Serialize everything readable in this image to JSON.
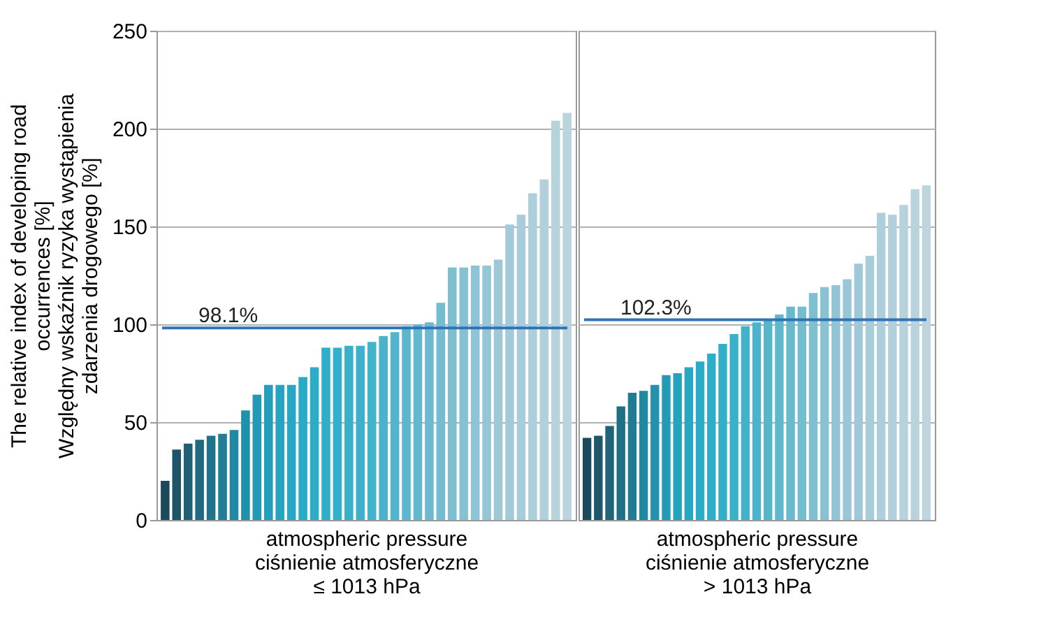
{
  "chart_data": [
    {
      "type": "bar",
      "xlabel": "atmospheric pressure\nciśnienie atmosferyczne\n≤ 1013 hPa",
      "ylabel": "The relative index of developing road\noccurrences [%]\nWzględny wskaźnik ryzyka wystąpienia\nzdarzenia drogowego [%]",
      "categories": [
        null,
        null,
        null,
        null,
        null,
        null,
        null,
        null,
        null,
        null,
        null,
        null,
        null,
        null,
        null,
        null,
        null,
        null,
        null,
        null,
        null,
        null,
        null,
        null,
        null,
        null,
        null,
        null,
        null,
        null,
        null,
        null,
        null,
        null,
        null,
        null
      ],
      "values": [
        20,
        36,
        39,
        41,
        43,
        44,
        46,
        56,
        64,
        69,
        69,
        69,
        73,
        78,
        88,
        88,
        89,
        89,
        91,
        94,
        96,
        99,
        100,
        101,
        111,
        129,
        129,
        130,
        130,
        133,
        151,
        156,
        167,
        174,
        204,
        208
      ],
      "colors": [
        "#1b4a5c",
        "#1d5568",
        "#1e6075",
        "#1f6a81",
        "#1f748c",
        "#207e97",
        "#2088a2",
        "#2192ad",
        "#2299b5",
        "#239fbb",
        "#24a4c0",
        "#26a8c4",
        "#28abc6",
        "#2badc8",
        "#2eaec9",
        "#32afca",
        "#37b0ca",
        "#3db1cb",
        "#43b2cb",
        "#4ab3cc",
        "#52b5cc",
        "#5ab7cd",
        "#62b8cd",
        "#6bbacf",
        "#74bcd0",
        "#7dbfd1",
        "#86c1d3",
        "#8ec4d5",
        "#95c6d6",
        "#9cc8d8",
        "#a2cad9",
        "#a8ccda",
        "#adcedb",
        "#b2d0dc",
        "#b6d2dd",
        "#bad4de"
      ],
      "ylim": [
        0,
        250
      ],
      "yticks": [
        0,
        50,
        100,
        150,
        200,
        250
      ],
      "grid": "y",
      "tick_labels": "y",
      "ref_lines": [
        {
          "axis": "y",
          "value": 98.1,
          "label": "98.1%",
          "color": "#2e75b6"
        }
      ]
    },
    {
      "type": "bar",
      "xlabel": "atmospheric pressure\nciśnienie atmosferyczne\n> 1013 hPa",
      "categories": [
        null,
        null,
        null,
        null,
        null,
        null,
        null,
        null,
        null,
        null,
        null,
        null,
        null,
        null,
        null,
        null,
        null,
        null,
        null,
        null,
        null,
        null,
        null,
        null,
        null,
        null,
        null,
        null,
        null,
        null,
        null
      ],
      "values": [
        42,
        43,
        48,
        58,
        65,
        66,
        69,
        74,
        75,
        78,
        81,
        85,
        90,
        95,
        99,
        101,
        102,
        105,
        109,
        109,
        116,
        119,
        120,
        123,
        131,
        135,
        157,
        156,
        161,
        169,
        171
      ],
      "colors": [
        "#1b4a5c",
        "#1d5769",
        "#1f6478",
        "#1f7086",
        "#207c94",
        "#2188a2",
        "#2292ae",
        "#239bb7",
        "#25a2bd",
        "#27a7c2",
        "#2aabc6",
        "#2eadc8",
        "#33afca",
        "#3ab1cb",
        "#42b2cb",
        "#4bb3cc",
        "#55b6cc",
        "#5fb8cd",
        "#69bacf",
        "#74bcd0",
        "#7ebfd2",
        "#88c2d3",
        "#91c5d5",
        "#99c7d7",
        "#a0c9d8",
        "#a7ccda",
        "#adcedb",
        "#b2d0dc",
        "#b6d2dd",
        "#b9d3de",
        "#bcd5df"
      ],
      "ylim": [
        0,
        250
      ],
      "yticks": [
        0,
        50,
        100,
        150,
        200,
        250
      ],
      "grid": "y",
      "tick_labels": false,
      "ref_lines": [
        {
          "axis": "y",
          "value": 102.3,
          "label": "102.3%",
          "color": "#2e75b6"
        }
      ]
    }
  ]
}
